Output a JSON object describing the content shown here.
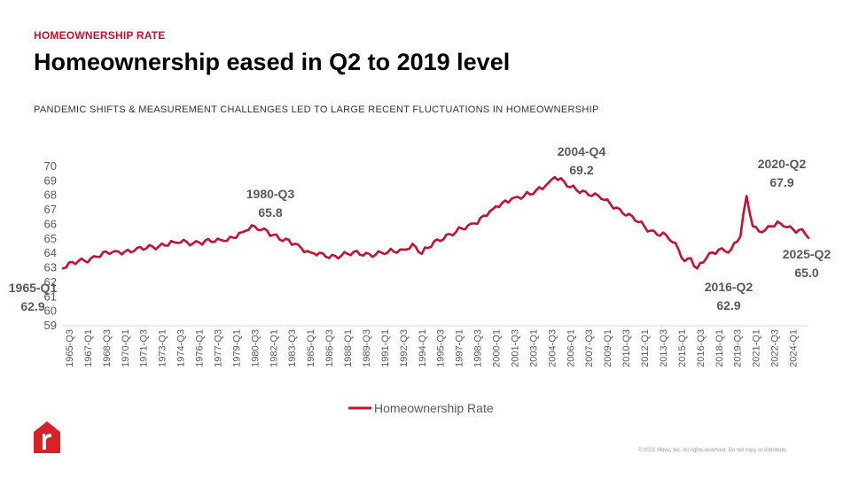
{
  "header": {
    "eyebrow": "HOMEOWNERSHIP RATE",
    "title": "Homeownership eased in Q2 to 2019 level",
    "subtitle": "PANDEMIC SHIFTS & MEASUREMENT CHALLENGES LED TO LARGE RECENT FLUCTUATIONS IN HOMEOWNERSHIP"
  },
  "footer": {
    "copyright": "© 2021 Move, Inc. All rights reserved. Do not copy or distribute."
  },
  "colors": {
    "accent": "#c8102e",
    "axis": "#d9d9d9",
    "text": "#595959"
  },
  "chart_data": {
    "type": "line",
    "title": "",
    "xlabel": "",
    "ylabel": "",
    "ylim": [
      59,
      70
    ],
    "yticks": [
      59,
      60,
      61,
      62,
      63,
      64,
      65,
      66,
      67,
      68,
      69,
      70
    ],
    "grid": false,
    "legend": "bottom-center",
    "x_start": "1965-Q1",
    "x_end": "2025-Q2",
    "tick_labels": [
      "1965-Q3",
      "1967-Q1",
      "1968-Q3",
      "1970-Q1",
      "1971-Q3",
      "1973-Q1",
      "1974-Q3",
      "1976-Q1",
      "1977-Q3",
      "1979-Q1",
      "1980-Q3",
      "1982-Q1",
      "1983-Q3",
      "1985-Q1",
      "1986-Q3",
      "1988-Q1",
      "1989-Q3",
      "1991-Q1",
      "1992-Q3",
      "1994-Q1",
      "1995-Q3",
      "1997-Q1",
      "1998-Q3",
      "2000-Q1",
      "2001-Q3",
      "2003-Q1",
      "2004-Q3",
      "2006-Q1",
      "2007-Q3",
      "2009-Q1",
      "2010-Q3",
      "2012-Q1",
      "2013-Q3",
      "2015-Q1",
      "2016-Q3",
      "2018-Q1",
      "2019-Q3",
      "2021-Q1",
      "2022-Q3",
      "2024-Q1"
    ],
    "series": [
      {
        "name": "Homeownership Rate",
        "color": "#c8102e",
        "anchors": [
          [
            "1965-Q1",
            62.9
          ],
          [
            "1966-Q2",
            63.4
          ],
          [
            "1967-Q4",
            63.7
          ],
          [
            "1969-Q2",
            64.1
          ],
          [
            "1970-Q4",
            64.1
          ],
          [
            "1972-Q2",
            64.4
          ],
          [
            "1974-Q1",
            64.7
          ],
          [
            "1976-Q1",
            64.7
          ],
          [
            "1978-Q1",
            64.8
          ],
          [
            "1979-Q3",
            65.4
          ],
          [
            "1980-Q3",
            65.8
          ],
          [
            "1981-Q3",
            65.5
          ],
          [
            "1982-Q3",
            64.9
          ],
          [
            "1983-Q4",
            64.6
          ],
          [
            "1985-Q1",
            64.0
          ],
          [
            "1986-Q2",
            63.7
          ],
          [
            "1988-Q1",
            63.9
          ],
          [
            "1989-Q4",
            63.9
          ],
          [
            "1991-Q2",
            64.0
          ],
          [
            "1992-Q4",
            64.2
          ],
          [
            "1993-Q2",
            64.6
          ],
          [
            "1994-Q1",
            63.9
          ],
          [
            "1995-Q2",
            64.9
          ],
          [
            "1996-Q4",
            65.4
          ],
          [
            "1998-Q2",
            66.0
          ],
          [
            "1999-Q4",
            67.0
          ],
          [
            "2001-Q2",
            67.7
          ],
          [
            "2002-Q4",
            68.0
          ],
          [
            "2004-Q1",
            68.6
          ],
          [
            "2004-Q4",
            69.2
          ],
          [
            "2006-Q1",
            68.5
          ],
          [
            "2007-Q2",
            68.2
          ],
          [
            "2008-Q3",
            67.7
          ],
          [
            "2010-Q1",
            67.0
          ],
          [
            "2011-Q2",
            66.2
          ],
          [
            "2012-Q3",
            65.5
          ],
          [
            "2013-Q4",
            65.2
          ],
          [
            "2014-Q4",
            64.2
          ],
          [
            "2015-Q2",
            63.4
          ],
          [
            "2015-Q4",
            63.6
          ],
          [
            "2016-Q2",
            62.9
          ],
          [
            "2017-Q1",
            63.6
          ],
          [
            "2018-Q1",
            64.2
          ],
          [
            "2019-Q1",
            64.2
          ],
          [
            "2019-Q4",
            65.1
          ],
          [
            "2020-Q2",
            67.9
          ],
          [
            "2020-Q4",
            65.8
          ],
          [
            "2021-Q3",
            65.4
          ],
          [
            "2022-Q2",
            65.8
          ],
          [
            "2023-Q1",
            66.0
          ],
          [
            "2024-Q1",
            65.6
          ],
          [
            "2024-Q4",
            65.6
          ],
          [
            "2025-Q2",
            65.0
          ]
        ]
      }
    ],
    "annotations": [
      {
        "period": "1965-Q1",
        "value": "62.9"
      },
      {
        "period": "1980-Q3",
        "value": "65.8"
      },
      {
        "period": "2004-Q4",
        "value": "69.2"
      },
      {
        "period": "2016-Q2",
        "value": "62.9"
      },
      {
        "period": "2020-Q2",
        "value": "67.9"
      },
      {
        "period": "2025-Q2",
        "value": "65.0"
      }
    ]
  }
}
